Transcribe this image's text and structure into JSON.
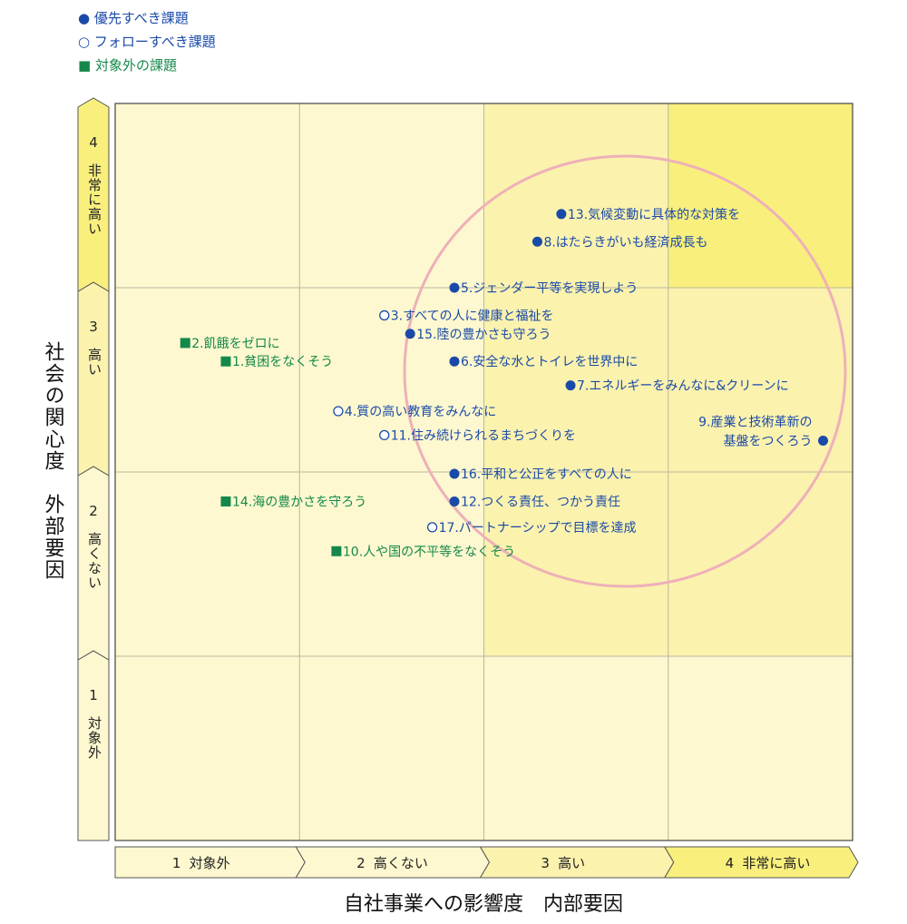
{
  "legend": {
    "priority": "● 優先すべき課題",
    "follow": "○ フォローすべき課題",
    "excluded": "■ 対象外の課題"
  },
  "colors": {
    "priority": "#1a4aa8",
    "follow": "#1a4aa8",
    "excluded": "#14884a",
    "cell_light": "#fdf8cf",
    "cell_mid": "#fbf2ae",
    "cell_high": "#f9ef7c",
    "grid": "#b8b8a0",
    "circle": "#eeb0b8"
  },
  "chart_data": {
    "type": "scatter",
    "xlabel": "自社事業への影響度　内部要因",
    "ylabel": "社会の関心度　外部要因",
    "xlim": [
      0,
      4
    ],
    "ylim": [
      0,
      4
    ],
    "x_levels": [
      {
        "num": "1",
        "text": "対象外"
      },
      {
        "num": "2",
        "text": "高くない"
      },
      {
        "num": "3",
        "text": "高い"
      },
      {
        "num": "4",
        "text": "非常に高い"
      }
    ],
    "y_levels": [
      {
        "num": "1",
        "text": "対象外"
      },
      {
        "num": "2",
        "text": "高くない"
      },
      {
        "num": "3",
        "text": "高い"
      },
      {
        "num": "4",
        "text": "非常に高い"
      }
    ],
    "points": [
      {
        "label": "13.気候変動に具体的な対策を",
        "category": "priority",
        "x": 2.42,
        "y": 3.4
      },
      {
        "label": "8.はたらきがいも経済成長も",
        "category": "priority",
        "x": 2.29,
        "y": 3.25
      },
      {
        "label": "5.ジェンダー平等を実現しよう",
        "category": "priority",
        "x": 1.84,
        "y": 3.0
      },
      {
        "label": "3.すべての人に健康と福祉を",
        "category": "follow",
        "x": 1.46,
        "y": 2.85
      },
      {
        "label": "15.陸の豊かさも守ろう",
        "category": "priority",
        "x": 1.6,
        "y": 2.75
      },
      {
        "label": "2.飢餓をゼロに",
        "category": "excluded",
        "x": 0.38,
        "y": 2.7
      },
      {
        "label": "6.安全な水とトイレを世界中に",
        "category": "priority",
        "x": 1.84,
        "y": 2.6
      },
      {
        "label": "1.貧困をなくそう",
        "category": "excluded",
        "x": 0.6,
        "y": 2.6
      },
      {
        "label": "7.エネルギーをみんなに&クリーンに",
        "category": "priority",
        "x": 2.47,
        "y": 2.47
      },
      {
        "label": "4.質の高い教育をみんなに",
        "category": "follow",
        "x": 1.21,
        "y": 2.33
      },
      {
        "label": "11.住み続けられるまちづくりを",
        "category": "follow",
        "x": 1.46,
        "y": 2.2
      },
      {
        "label": "9.産業と技術革新の基盤をつくろう",
        "category": "priority",
        "x": 3.84,
        "y": 2.17,
        "label_lines": [
          "9.産業と技術革新の",
          "基盤をつくろう"
        ]
      },
      {
        "label": "16.平和と公正をすべての人に",
        "category": "priority",
        "x": 1.84,
        "y": 1.99
      },
      {
        "label": "14.海の豊かさを守ろう",
        "category": "excluded",
        "x": 0.6,
        "y": 1.84
      },
      {
        "label": "12.つくる責任、つかう責任",
        "category": "priority",
        "x": 1.84,
        "y": 1.84
      },
      {
        "label": "17.パートナーシップで目標を達成",
        "category": "follow",
        "x": 1.72,
        "y": 1.7
      },
      {
        "label": "10.人や国の不平等をなくそう",
        "category": "excluded",
        "x": 1.2,
        "y": 1.57
      }
    ]
  }
}
